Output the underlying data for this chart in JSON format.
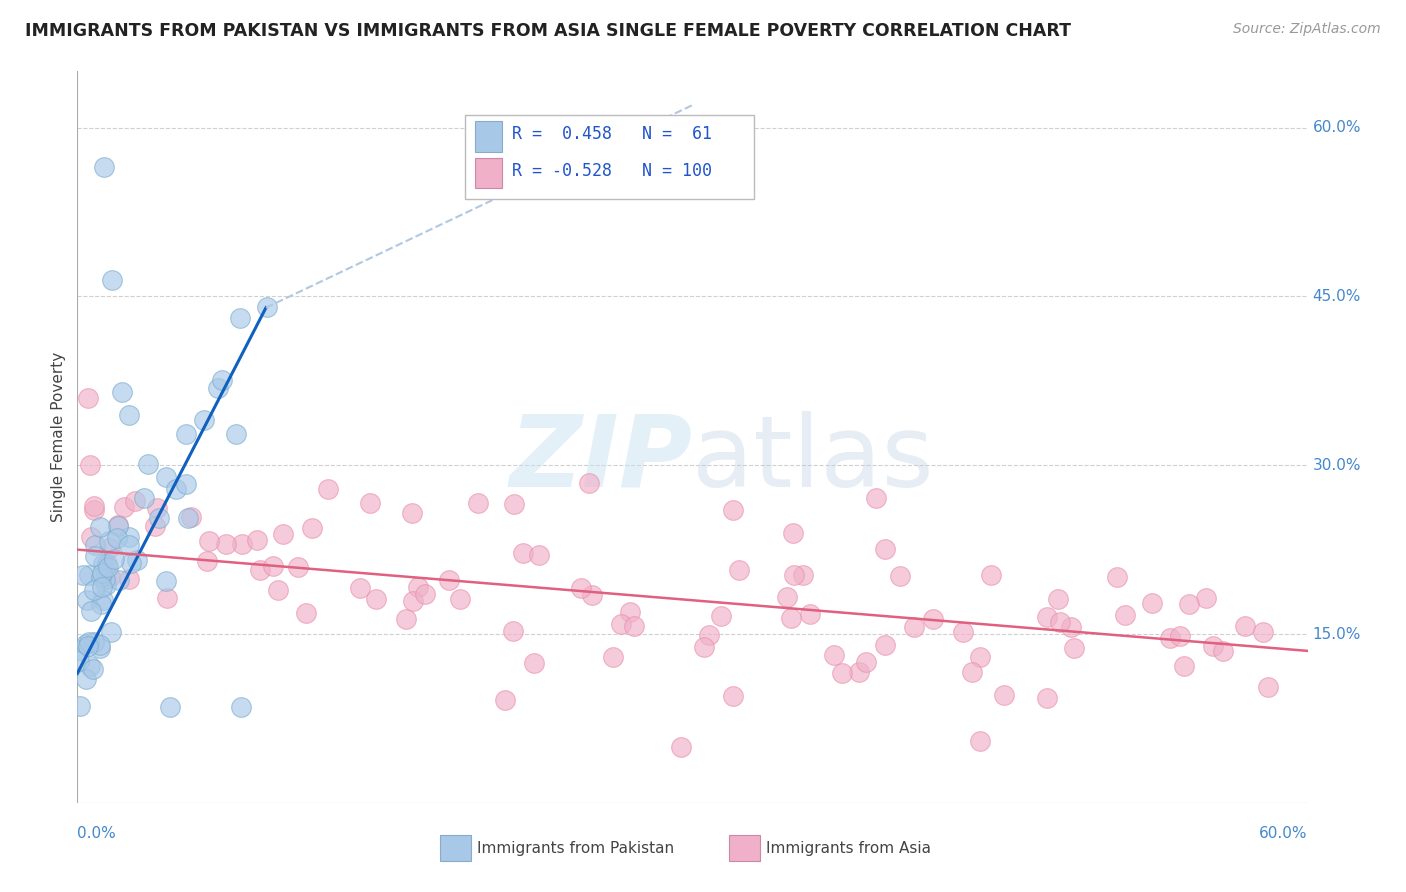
{
  "title": "IMMIGRANTS FROM PAKISTAN VS IMMIGRANTS FROM ASIA SINGLE FEMALE POVERTY CORRELATION CHART",
  "source": "Source: ZipAtlas.com",
  "ylabel": "Single Female Poverty",
  "xlim": [
    0.0,
    0.6
  ],
  "ylim": [
    0.0,
    0.65
  ],
  "ytick_vals": [
    0.15,
    0.3,
    0.45,
    0.6
  ],
  "ytick_labels": [
    "15.0%",
    "30.0%",
    "45.0%",
    "60.0%"
  ],
  "xtick_left": "0.0%",
  "xtick_right": "60.0%",
  "pakistan_color": "#a8c8e8",
  "asia_color": "#f0b0c8",
  "pakistan_line_color": "#1060c0",
  "asia_line_color": "#e06080",
  "background_color": "#ffffff",
  "grid_color": "#d0d0d0",
  "watermark_text": "ZIPatlas",
  "legend_text_1": "R =  0.458   N =  61",
  "legend_text_2": "R = -0.528   N = 100",
  "legend_color": "#2255cc",
  "bottom_label_pak": "Immigrants from Pakistan",
  "bottom_label_asia": "Immigrants from Asia",
  "pak_trend_x0": 0.0,
  "pak_trend_y0": 0.115,
  "pak_trend_x1": 0.092,
  "pak_trend_y1": 0.44,
  "pak_trend_dash_x1": 0.3,
  "pak_trend_dash_y1": 0.62,
  "asia_trend_x0": 0.0,
  "asia_trend_y0": 0.225,
  "asia_trend_x1": 0.6,
  "asia_trend_y1": 0.135
}
